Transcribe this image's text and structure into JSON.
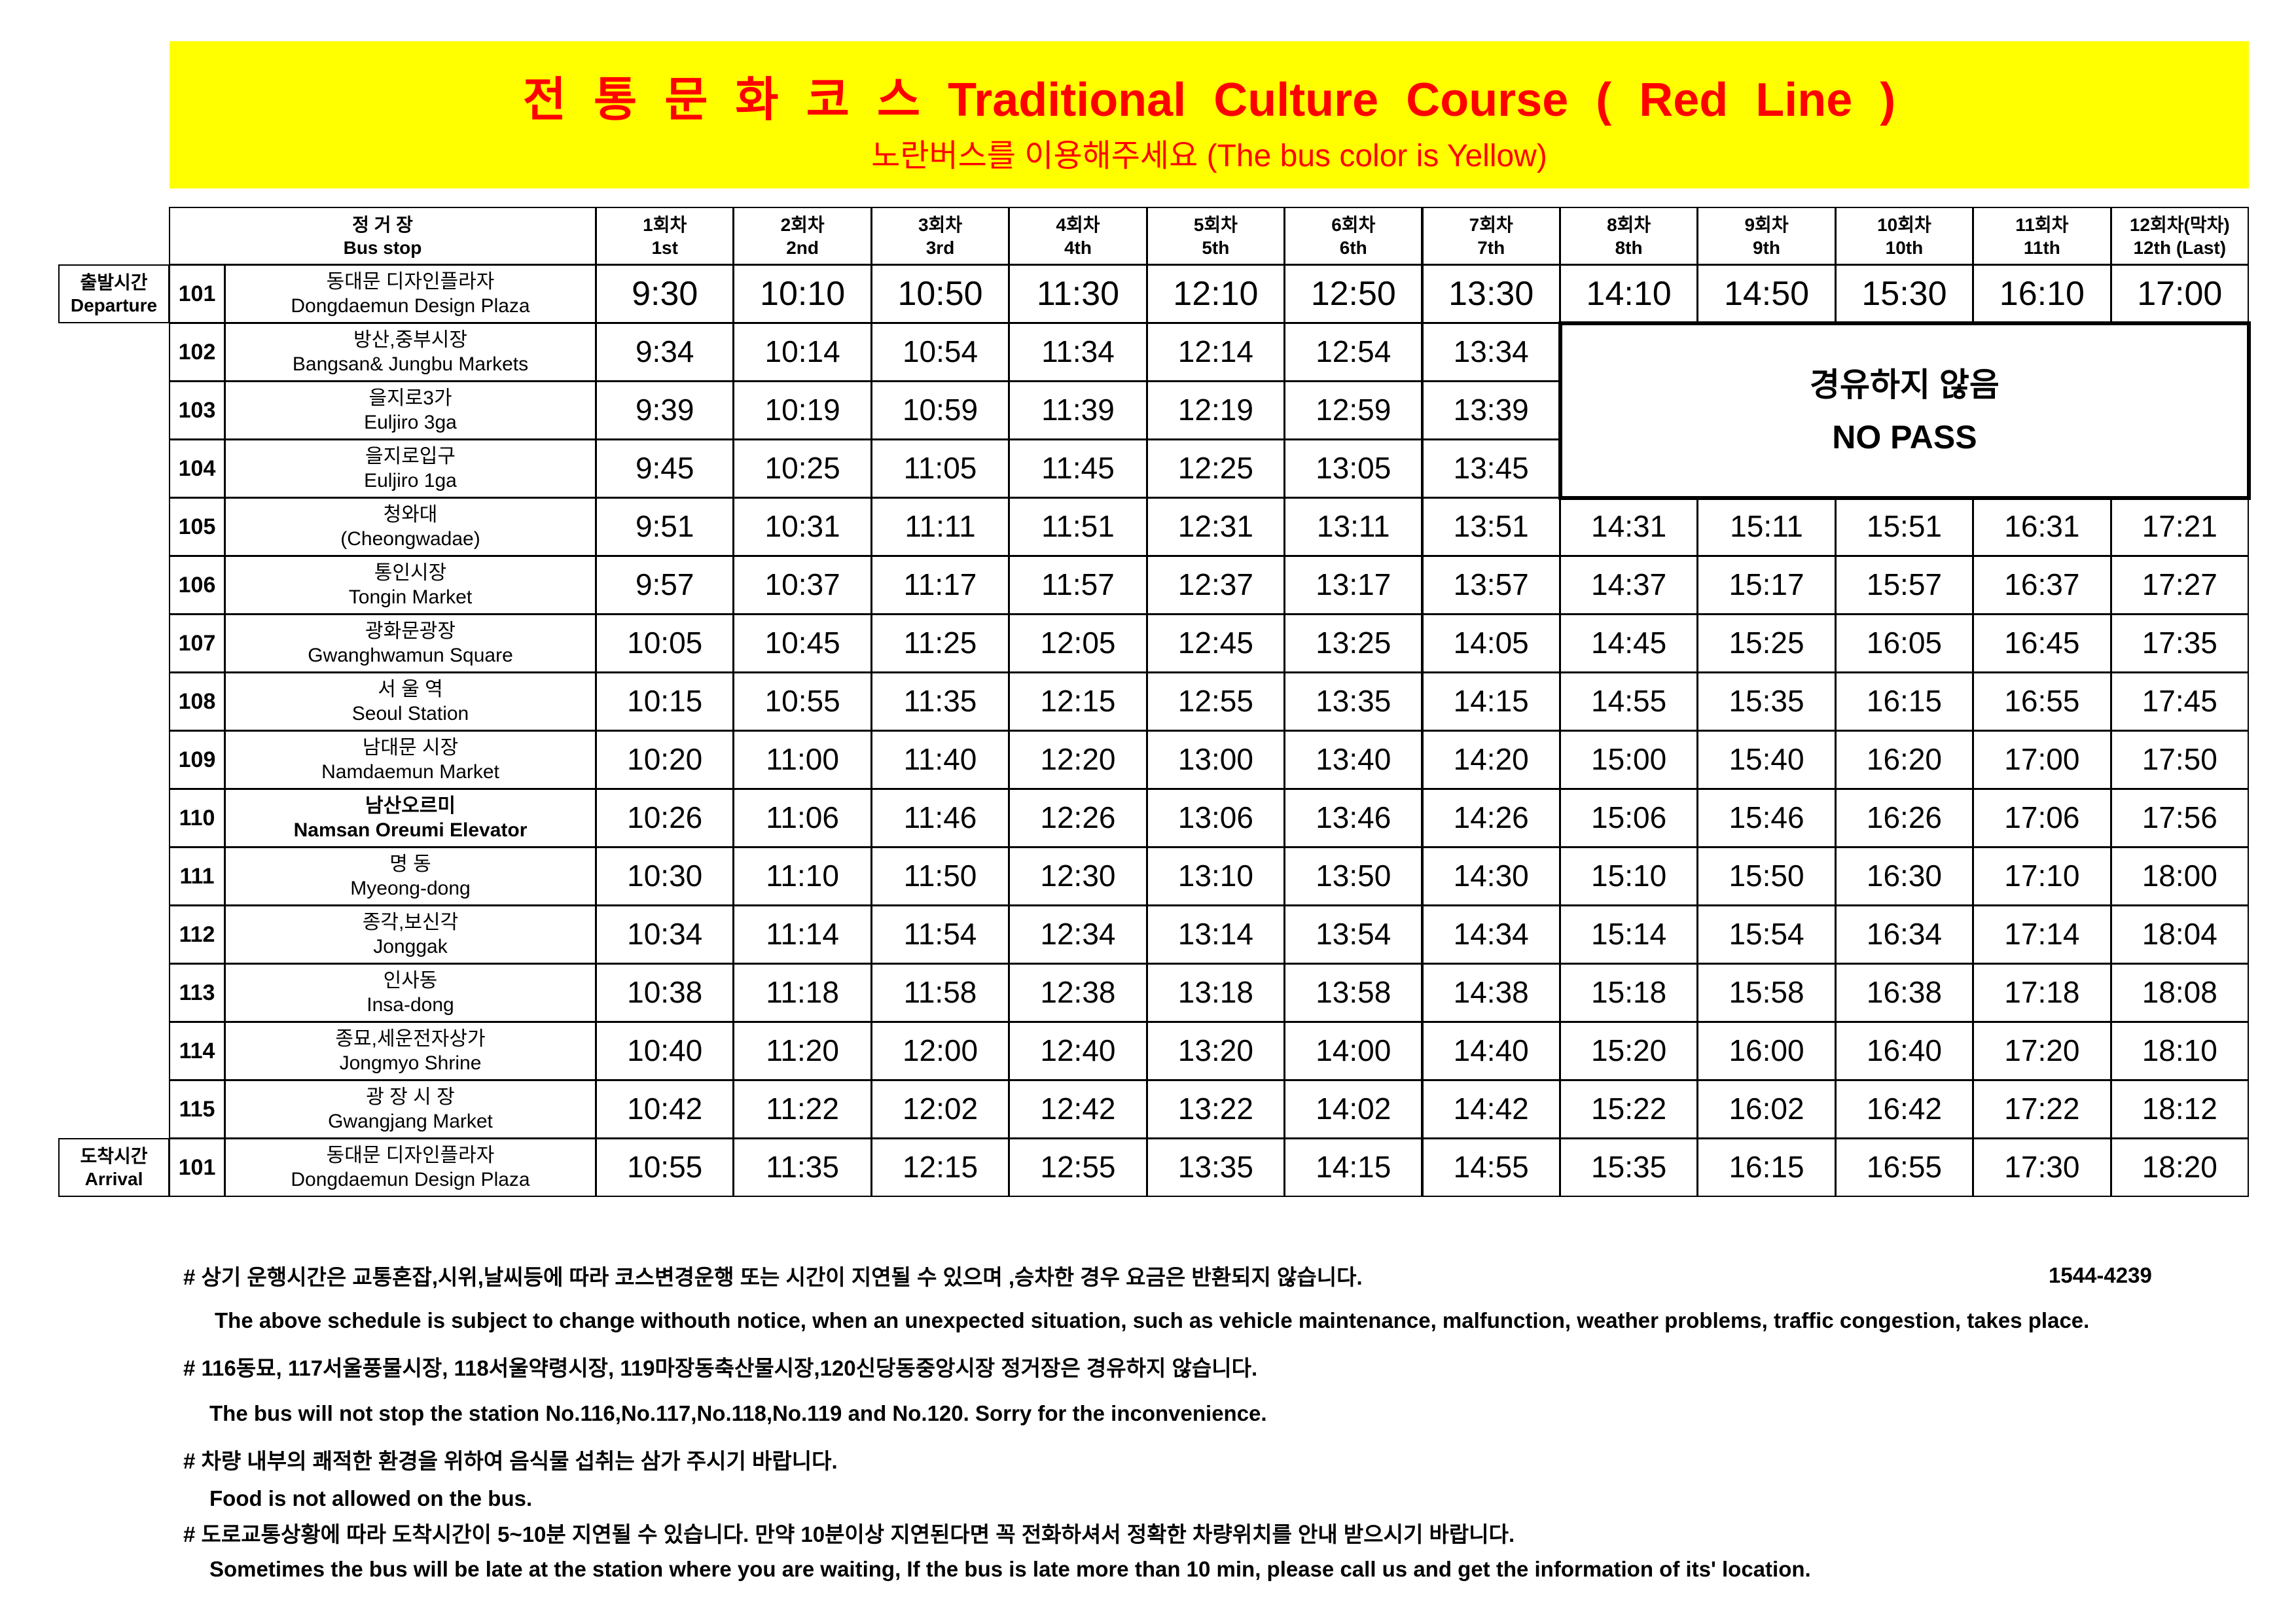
{
  "header": {
    "title": "전 통 문 화 코 스 Traditional Culture Course ( Red Line )",
    "subtitle": "노란버스를 이용해주세요 (The bus color is Yellow)"
  },
  "table": {
    "stop_header": {
      "ko": "정 거 장",
      "en": "Bus stop"
    },
    "trip_headers": [
      {
        "ko": "1회차",
        "en": "1st"
      },
      {
        "ko": "2회차",
        "en": "2nd"
      },
      {
        "ko": "3회차",
        "en": "3rd"
      },
      {
        "ko": "4회차",
        "en": "4th"
      },
      {
        "ko": "5회차",
        "en": "5th"
      },
      {
        "ko": "6회차",
        "en": "6th"
      },
      {
        "ko": "7회차",
        "en": "7th"
      },
      {
        "ko": "8회차",
        "en": "8th"
      },
      {
        "ko": "9회차",
        "en": "9th"
      },
      {
        "ko": "10회차",
        "en": "10th"
      },
      {
        "ko": "11회차",
        "en": "11th"
      },
      {
        "ko": "12회차(막차)",
        "en": "12th (Last)"
      }
    ],
    "departure": {
      "ko": "출발시간",
      "en": "Departure"
    },
    "arrival": {
      "ko": "도착시간",
      "en": "Arrival"
    },
    "no_pass": {
      "ko": "경유하지 않음",
      "en": "NO PASS"
    },
    "rows": [
      {
        "no": "101",
        "ko": "동대문 디자인플라자",
        "en": "Dongdaemun Design Plaza",
        "times": [
          "9:30",
          "10:10",
          "10:50",
          "11:30",
          "12:10",
          "12:50",
          "13:30",
          "14:10",
          "14:50",
          "15:30",
          "16:10",
          "17:00"
        ]
      },
      {
        "no": "102",
        "ko": "방산,중부시장",
        "en": "Bangsan& Jungbu Markets",
        "times": [
          "9:34",
          "10:14",
          "10:54",
          "11:34",
          "12:14",
          "12:54",
          "13:34"
        ]
      },
      {
        "no": "103",
        "ko": "을지로3가",
        "en": "Euljiro 3ga",
        "times": [
          "9:39",
          "10:19",
          "10:59",
          "11:39",
          "12:19",
          "12:59",
          "13:39"
        ]
      },
      {
        "no": "104",
        "ko": "을지로입구",
        "en": "Euljiro 1ga",
        "times": [
          "9:45",
          "10:25",
          "11:05",
          "11:45",
          "12:25",
          "13:05",
          "13:45"
        ]
      },
      {
        "no": "105",
        "ko": "청와대",
        "en": "(Cheongwadae)",
        "times": [
          "9:51",
          "10:31",
          "11:11",
          "11:51",
          "12:31",
          "13:11",
          "13:51",
          "14:31",
          "15:11",
          "15:51",
          "16:31",
          "17:21"
        ]
      },
      {
        "no": "106",
        "ko": "통인시장",
        "en": "Tongin Market",
        "times": [
          "9:57",
          "10:37",
          "11:17",
          "11:57",
          "12:37",
          "13:17",
          "13:57",
          "14:37",
          "15:17",
          "15:57",
          "16:37",
          "17:27"
        ]
      },
      {
        "no": "107",
        "ko": "광화문광장",
        "en": "Gwanghwamun Square",
        "times": [
          "10:05",
          "10:45",
          "11:25",
          "12:05",
          "12:45",
          "13:25",
          "14:05",
          "14:45",
          "15:25",
          "16:05",
          "16:45",
          "17:35"
        ]
      },
      {
        "no": "108",
        "ko": "서 울 역",
        "en": "Seoul Station",
        "times": [
          "10:15",
          "10:55",
          "11:35",
          "12:15",
          "12:55",
          "13:35",
          "14:15",
          "14:55",
          "15:35",
          "16:15",
          "16:55",
          "17:45"
        ]
      },
      {
        "no": "109",
        "ko": "남대문 시장",
        "en": "Namdaemun Market",
        "times": [
          "10:20",
          "11:00",
          "11:40",
          "12:20",
          "13:00",
          "13:40",
          "14:20",
          "15:00",
          "15:40",
          "16:20",
          "17:00",
          "17:50"
        ]
      },
      {
        "no": "110",
        "ko": "남산오르미",
        "en": "Namsan Oreumi Elevator",
        "times": [
          "10:26",
          "11:06",
          "11:46",
          "12:26",
          "13:06",
          "13:46",
          "14:26",
          "15:06",
          "15:46",
          "16:26",
          "17:06",
          "17:56"
        ]
      },
      {
        "no": "111",
        "ko": "명 동",
        "en": "Myeong-dong",
        "times": [
          "10:30",
          "11:10",
          "11:50",
          "12:30",
          "13:10",
          "13:50",
          "14:30",
          "15:10",
          "15:50",
          "16:30",
          "17:10",
          "18:00"
        ]
      },
      {
        "no": "112",
        "ko": "종각,보신각",
        "en": "Jonggak",
        "times": [
          "10:34",
          "11:14",
          "11:54",
          "12:34",
          "13:14",
          "13:54",
          "14:34",
          "15:14",
          "15:54",
          "16:34",
          "17:14",
          "18:04"
        ]
      },
      {
        "no": "113",
        "ko": "인사동",
        "en": "Insa-dong",
        "times": [
          "10:38",
          "11:18",
          "11:58",
          "12:38",
          "13:18",
          "13:58",
          "14:38",
          "15:18",
          "15:58",
          "16:38",
          "17:18",
          "18:08"
        ]
      },
      {
        "no": "114",
        "ko": "종묘,세운전자상가",
        "en": "Jongmyo Shrine",
        "times": [
          "10:40",
          "11:20",
          "12:00",
          "12:40",
          "13:20",
          "14:00",
          "14:40",
          "15:20",
          "16:00",
          "16:40",
          "17:20",
          "18:10"
        ]
      },
      {
        "no": "115",
        "ko": "광 장 시 장",
        "en": "Gwangjang Market",
        "times": [
          "10:42",
          "11:22",
          "12:02",
          "12:42",
          "13:22",
          "14:02",
          "14:42",
          "15:22",
          "16:02",
          "16:42",
          "17:22",
          "18:12"
        ]
      },
      {
        "no": "101",
        "ko": "동대문 디자인플라자",
        "en": "Dongdaemun Design Plaza",
        "times": [
          "10:55",
          "11:35",
          "12:15",
          "12:55",
          "13:35",
          "14:15",
          "14:55",
          "15:35",
          "16:15",
          "16:55",
          "17:30",
          "18:20"
        ]
      }
    ]
  },
  "notes": {
    "phone": "1544-4239",
    "lines": [
      "# 상기 운행시간은 교통혼잡,시위,날씨등에 따라 코스변경운행 또는 시간이 지연될 수 있으며 ,승차한 경우 요금은 반환되지 않습니다.",
      "The above schedule is subject to change withouth notice, when an unexpected situation, such as vehicle maintenance, malfunction, weather problems, traffic congestion, takes place.",
      "# 116동묘, 117서울풍물시장, 118서울약령시장, 119마장동축산물시장,120신당동중앙시장 정거장은 경유하지 않습니다.",
      "The bus will not stop the station No.116,No.117,No.118,No.119 and No.120. Sorry for the inconvenience.",
      "# 차량 내부의 쾌적한 환경을 위하여 음식물 섭취는 삼가 주시기 바랍니다.",
      "Food is not allowed on the bus.",
      "# 도로교통상황에 따라 도착시간이 5~10분 지연될 수 있습니다. 만약 10분이상 지연된다면 꼭 전화하셔서 정확한 차량위치를 안내 받으시기 바랍니다.",
      "Sometimes the bus will be late at the station where you are waiting, If the bus is late more than 10 min, please call us and get the information of its' location."
    ]
  }
}
